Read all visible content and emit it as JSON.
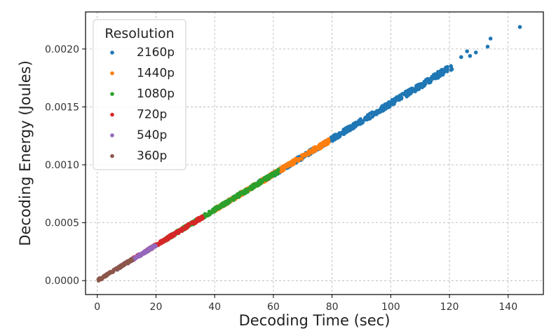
{
  "chart_data": {
    "type": "scatter",
    "title": "",
    "xlabel": "Decoding Time (sec)",
    "ylabel": "Decoding Energy (Joules)",
    "xlim": [
      -4,
      152
    ],
    "ylim": [
      -0.00012,
      0.00232
    ],
    "xticks": [
      0,
      20,
      40,
      60,
      80,
      100,
      120,
      140
    ],
    "yticks": [
      0.0,
      0.0005,
      0.001,
      0.0015,
      0.002
    ],
    "ytick_labels": [
      "0.0000",
      "0.0005",
      "0.0010",
      "0.0015",
      "0.0020"
    ],
    "grid": true,
    "legend": {
      "title": "Resolution",
      "placement": "top-left"
    },
    "series": [
      {
        "name": "2160p",
        "color": "#1f77b4",
        "x_range": [
          55,
          121
        ],
        "slope": 1.53e-05,
        "outliers": [
          [
            124,
            0.00193
          ],
          [
            126,
            0.00198
          ],
          [
            127,
            0.00194
          ],
          [
            129,
            0.00197
          ],
          [
            133,
            0.00202
          ],
          [
            134,
            0.00209
          ],
          [
            144,
            0.00219
          ]
        ]
      },
      {
        "name": "1440p",
        "color": "#ff7f0e",
        "x_range": [
          40,
          79
        ],
        "slope": 1.53e-05,
        "outliers": []
      },
      {
        "name": "1080p",
        "color": "#2ca02c",
        "x_range": [
          23,
          62
        ],
        "slope": 1.53e-05,
        "outliers": []
      },
      {
        "name": "720p",
        "color": "#d62728",
        "x_range": [
          12,
          36
        ],
        "slope": 1.53e-05,
        "outliers": []
      },
      {
        "name": "540p",
        "color": "#9467bd",
        "x_range": [
          6,
          20
        ],
        "slope": 1.53e-05,
        "outliers": []
      },
      {
        "name": "360p",
        "color": "#8c564b",
        "x_range": [
          0.3,
          12
        ],
        "slope": 1.53e-05,
        "outliers": []
      }
    ]
  }
}
